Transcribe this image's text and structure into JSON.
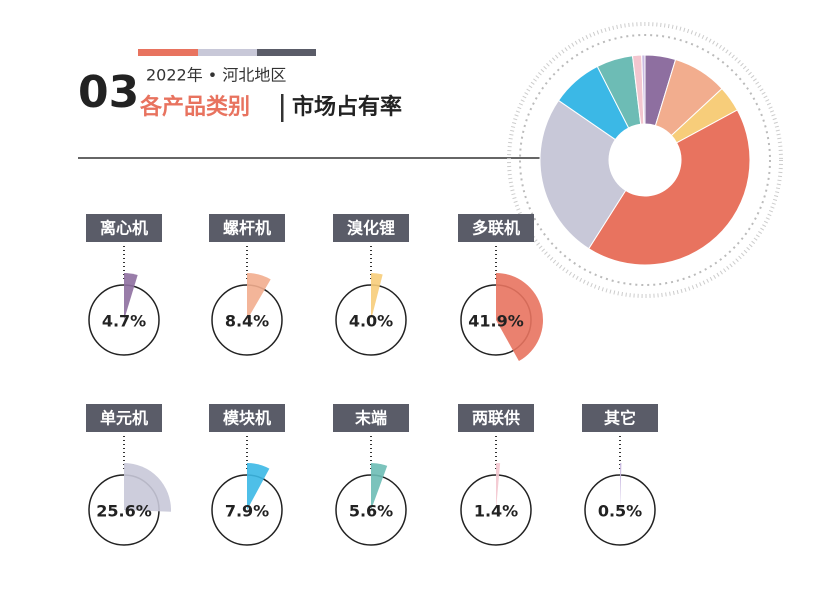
{
  "chart_data": {
    "type": "pie",
    "section_number": "03",
    "subtitle": "2022年 • 河北地区",
    "title": "各产品类别",
    "title_right": "市场占有率",
    "categories": [
      "离心机",
      "螺杆机",
      "溴化锂",
      "多联机",
      "单元机",
      "模块机",
      "末端",
      "两联供",
      "其它"
    ],
    "values": [
      4.7,
      8.4,
      4.0,
      41.9,
      25.6,
      7.9,
      5.6,
      1.4,
      0.5
    ],
    "value_labels": [
      "4.7%",
      "8.4%",
      "4.0%",
      "41.9%",
      "25.6%",
      "7.9%",
      "5.6%",
      "1.4%",
      "0.5%"
    ],
    "colors": [
      "#8e6fa0",
      "#f2ad8e",
      "#f7cd7a",
      "#e8735f",
      "#c8c8d8",
      "#3bb8e6",
      "#6dbcb5",
      "#f3c6cf",
      "#cbbbe2"
    ]
  }
}
